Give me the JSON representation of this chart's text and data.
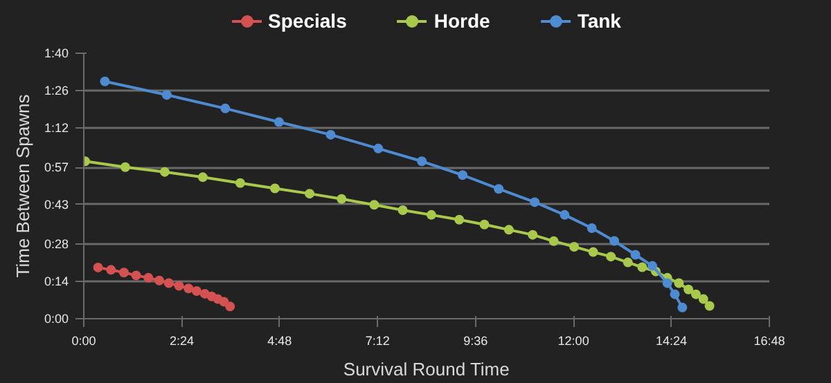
{
  "chart_data": {
    "type": "line",
    "xlabel": "Survival Round Time",
    "ylabel": "Time Between Spawns",
    "marker": "circle",
    "line_style": "solid",
    "grid": "y",
    "legend": "top",
    "xlim": [
      0,
      1008
    ],
    "ylim": [
      0,
      100
    ],
    "xticks": [
      {
        "value": 0,
        "label": "0:00"
      },
      {
        "value": 144,
        "label": "2:24"
      },
      {
        "value": 288,
        "label": "4:48"
      },
      {
        "value": 432,
        "label": "7:12"
      },
      {
        "value": 576,
        "label": "9:36"
      },
      {
        "value": 720,
        "label": "12:00"
      },
      {
        "value": 864,
        "label": "14:24"
      },
      {
        "value": 1008,
        "label": "16:48"
      }
    ],
    "yticks": [
      {
        "value": 0,
        "label": "0:00"
      },
      {
        "value": 14,
        "label": "0:14"
      },
      {
        "value": 28,
        "label": "0:28"
      },
      {
        "value": 43,
        "label": "0:43"
      },
      {
        "value": 57,
        "label": "0:57"
      },
      {
        "value": 72,
        "label": "1:12"
      },
      {
        "value": 86,
        "label": "1:26"
      },
      {
        "value": 100,
        "label": "1:40"
      }
    ],
    "series": [
      {
        "name": "Specials",
        "color": "#d45252",
        "x": [
          21,
          40,
          59,
          77,
          95,
          111,
          125,
          140,
          154,
          166,
          178,
          188,
          197,
          206,
          215
        ],
        "values": [
          19.3,
          18.4,
          17.4,
          16.3,
          15.4,
          14.4,
          13.4,
          12.4,
          11.4,
          10.4,
          9.4,
          8.4,
          7.4,
          6.4,
          4.6
        ]
      },
      {
        "name": "Horde",
        "color": "#a9c94c",
        "x": [
          2,
          61,
          119,
          175,
          230,
          281,
          332,
          379,
          427,
          469,
          511,
          552,
          589,
          625,
          660,
          691,
          721,
          749,
          775,
          800,
          821,
          841,
          858,
          875,
          889,
          900,
          911,
          920
        ],
        "values": [
          59.3,
          57.1,
          55.3,
          53.3,
          51.1,
          49.1,
          47.1,
          45.1,
          42.9,
          40.9,
          39.1,
          37.3,
          35.5,
          33.5,
          31.6,
          29.2,
          27.1,
          25.1,
          23.4,
          21.2,
          19.4,
          17.8,
          15.4,
          13.4,
          11.0,
          9.2,
          7.4,
          4.8
        ]
      },
      {
        "name": "Tank",
        "color": "#4f8bd0",
        "x": [
          31,
          122,
          208,
          287,
          363,
          433,
          497,
          557,
          610,
          663,
          707,
          747,
          780,
          811,
          836,
          858,
          869,
          880
        ],
        "values": [
          89.4,
          84.3,
          79.2,
          74.1,
          69.3,
          64.1,
          59.3,
          54.1,
          48.9,
          43.9,
          39.1,
          34.1,
          29.3,
          24.1,
          19.9,
          13.4,
          9.2,
          4.2
        ]
      }
    ]
  }
}
